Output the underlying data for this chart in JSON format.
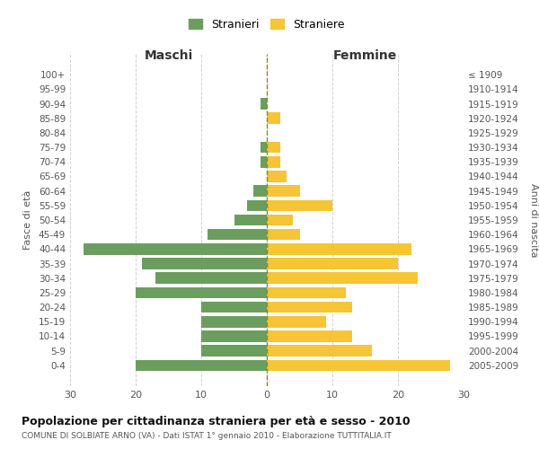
{
  "age_groups_bottom_to_top": [
    "0-4",
    "5-9",
    "10-14",
    "15-19",
    "20-24",
    "25-29",
    "30-34",
    "35-39",
    "40-44",
    "45-49",
    "50-54",
    "55-59",
    "60-64",
    "65-69",
    "70-74",
    "75-79",
    "80-84",
    "85-89",
    "90-94",
    "95-99",
    "100+"
  ],
  "birth_years_bottom_to_top": [
    "2005-2009",
    "2000-2004",
    "1995-1999",
    "1990-1994",
    "1985-1989",
    "1980-1984",
    "1975-1979",
    "1970-1974",
    "1965-1969",
    "1960-1964",
    "1955-1959",
    "1950-1954",
    "1945-1949",
    "1940-1944",
    "1935-1939",
    "1930-1934",
    "1925-1929",
    "1920-1924",
    "1915-1919",
    "1910-1914",
    "≤ 1909"
  ],
  "maschi_bottom_to_top": [
    20,
    10,
    10,
    10,
    10,
    20,
    17,
    19,
    28,
    9,
    5,
    3,
    2,
    0,
    1,
    1,
    0,
    0,
    1,
    0,
    0
  ],
  "femmine_bottom_to_top": [
    28,
    16,
    13,
    9,
    13,
    12,
    23,
    20,
    22,
    5,
    4,
    10,
    5,
    3,
    2,
    2,
    0,
    2,
    0,
    0,
    0
  ],
  "maschi_color": "#6b9e5e",
  "femmine_color": "#f5c535",
  "title": "Popolazione per cittadinanza straniera per età e sesso - 2010",
  "subtitle": "COMUNE DI SOLBIATE ARNO (VA) - Dati ISTAT 1° gennaio 2010 - Elaborazione TUTTITALIA.IT",
  "header_left": "Maschi",
  "header_right": "Femmine",
  "ylabel_left": "Fasce di età",
  "ylabel_right": "Anni di nascita",
  "legend_maschi": "Stranieri",
  "legend_femmine": "Straniere",
  "xlim": 30,
  "background_color": "#ffffff",
  "grid_color": "#cccccc"
}
